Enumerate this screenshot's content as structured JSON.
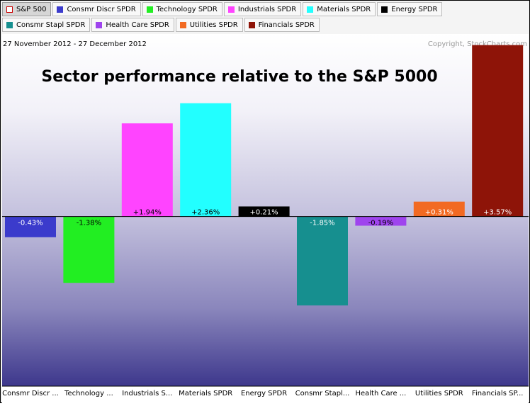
{
  "legend": [
    {
      "label": "S&P 500",
      "color": "#ffffff",
      "border": "#cc0000"
    },
    {
      "label": "Consmr Discr SPDR",
      "color": "#3b3bcc"
    },
    {
      "label": "Technology SPDR",
      "color": "#22ee22"
    },
    {
      "label": "Industrials SPDR",
      "color": "#ff44ff"
    },
    {
      "label": "Materials SPDR",
      "color": "#22ffff"
    },
    {
      "label": "Energy SPDR",
      "color": "#000000"
    },
    {
      "label": "Consmr Stapl SPDR",
      "color": "#168f8f"
    },
    {
      "label": "Health Care SPDR",
      "color": "#9f44ee"
    },
    {
      "label": "Utilities SPDR",
      "color": "#f26a22"
    },
    {
      "label": "Financials SPDR",
      "color": "#8e1408"
    }
  ],
  "chart_data": {
    "type": "bar",
    "title": "Sector performance relative to the S&P 5000",
    "date_range": "27 November 2012 - 27 December 2012",
    "copyright": "Copyright, StockCharts.com",
    "categories": [
      "Consmr Discr ...",
      "Technology ...",
      "Industrials S...",
      "Materials SPDR",
      "Energy SPDR",
      "Consmr Stapl...",
      "Health Care ...",
      "Utilities SPDR",
      "Financials SP..."
    ],
    "values": [
      -0.43,
      -1.38,
      1.94,
      2.36,
      0.21,
      -1.85,
      -0.19,
      0.31,
      3.57
    ],
    "value_labels": [
      "-0.43%",
      "-1.38%",
      "+1.94%",
      "+2.36%",
      "+0.21%",
      "-1.85%",
      "-0.19%",
      "+0.31%",
      "+3.57%"
    ],
    "colors": [
      "#3b3bcc",
      "#22ee22",
      "#ff44ff",
      "#22ffff",
      "#000000",
      "#168f8f",
      "#9f44ee",
      "#f26a22",
      "#8e1408"
    ],
    "label_colors": [
      "#ffffff",
      "#000000",
      "#000000",
      "#000000",
      "#ffffff",
      "#ffffff",
      "#000000",
      "#ffffff",
      "#ffffff"
    ],
    "ylim": [
      -3.53,
      3.8
    ],
    "zero_line": 0
  }
}
